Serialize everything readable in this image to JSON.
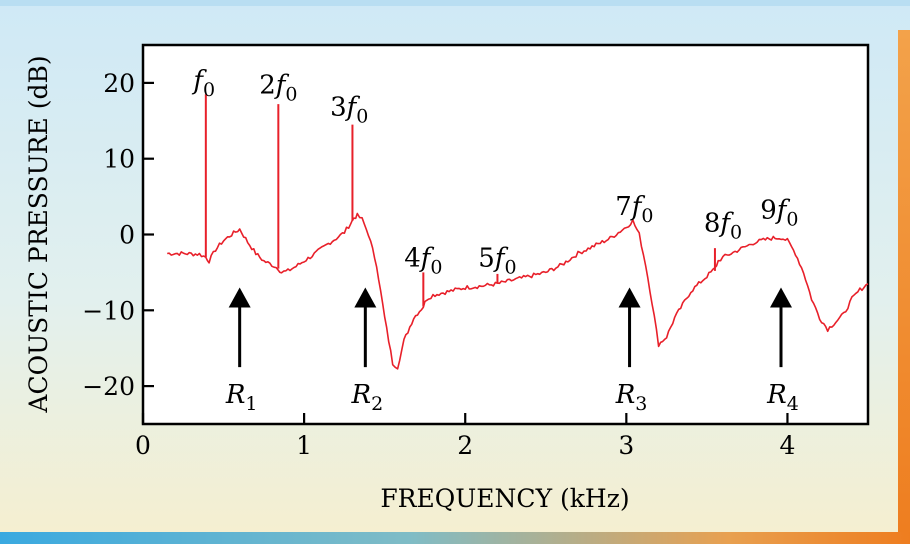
{
  "chart_data": {
    "type": "line",
    "xlabel": "FREQUENCY (kHz)",
    "ylabel": "ACOUSTIC PRESSURE (dB)",
    "xlim": [
      0,
      4.5
    ],
    "ylim": [
      -25,
      25
    ],
    "x_ticks": [
      0,
      1,
      2,
      3,
      4
    ],
    "y_ticks": [
      20,
      10,
      0,
      -10,
      -20
    ],
    "y_tick_labels": [
      "20",
      "10",
      "0",
      "−10",
      "−20"
    ],
    "grid": false,
    "line_color": "#e8202a",
    "series": [
      {
        "x": [
          0.15,
          0.25,
          0.35,
          0.39,
          0.41,
          0.45,
          0.5,
          0.55,
          0.6,
          0.65,
          0.7,
          0.75,
          0.8,
          0.84,
          0.86,
          0.9,
          0.95,
          1.0,
          1.05,
          1.1,
          1.15,
          1.2,
          1.25,
          1.29,
          1.31,
          1.33,
          1.36,
          1.4,
          1.45,
          1.5,
          1.55,
          1.58,
          1.62,
          1.68,
          1.74,
          1.76,
          1.8,
          1.9,
          2.0,
          2.1,
          2.2,
          2.3,
          2.4,
          2.5,
          2.6,
          2.7,
          2.8,
          2.9,
          3.0,
          3.04,
          3.08,
          3.12,
          3.16,
          3.2,
          3.25,
          3.3,
          3.4,
          3.5,
          3.55,
          3.57,
          3.6,
          3.7,
          3.8,
          3.9,
          3.96,
          4.0,
          4.05,
          4.1,
          4.15,
          4.2,
          4.25,
          4.3,
          4.35,
          4.4,
          4.45,
          4.5
        ],
        "y": [
          -2.5,
          -2.5,
          -2.6,
          -3,
          -3.5,
          -2,
          -0.8,
          0,
          0.7,
          -1,
          -2.5,
          -3.5,
          -4,
          -4.5,
          -5,
          -4.8,
          -4.2,
          -3.5,
          -2.8,
          -2,
          -1.2,
          -0.5,
          0.3,
          1.5,
          2.2,
          2.5,
          2,
          0,
          -4,
          -11,
          -17,
          -17.5,
          -14,
          -11,
          -9.5,
          -8.5,
          -8,
          -7.5,
          -7,
          -6.8,
          -6.5,
          -6,
          -5.5,
          -5,
          -4,
          -2.5,
          -1.5,
          -0.5,
          1,
          1.8,
          0,
          -4,
          -9,
          -14.5,
          -13.5,
          -11,
          -7.5,
          -5.5,
          -4.5,
          -3.5,
          -3,
          -2,
          -1,
          -0.5,
          -0.4,
          -0.8,
          -2.5,
          -5,
          -8.5,
          -11,
          -12.5,
          -11.5,
          -10.5,
          -8.5,
          -7.3,
          -6.5
        ],
        "spikes": [
          {
            "x": 0.39,
            "base": -3,
            "top": 18.5
          },
          {
            "x": 0.84,
            "base": -4.5,
            "top": 17.2
          },
          {
            "x": 1.3,
            "base": 1.8,
            "top": 14.5
          },
          {
            "x": 1.74,
            "base": -9.5,
            "top": -5
          },
          {
            "x": 2.2,
            "base": -6.5,
            "top": -5.2
          },
          {
            "x": 3.55,
            "base": -4.8,
            "top": -1.8
          }
        ]
      }
    ],
    "annotations": {
      "harmonics": [
        {
          "n": "",
          "x": 0.38,
          "y": 19.2
        },
        {
          "n": "2",
          "x": 0.84,
          "y": 18.6
        },
        {
          "n": "3",
          "x": 1.28,
          "y": 15.7
        },
        {
          "n": "4",
          "x": 1.74,
          "y": -4.2
        },
        {
          "n": "5",
          "x": 2.2,
          "y": -4.2
        },
        {
          "n": "7",
          "x": 3.05,
          "y": 2.6
        },
        {
          "n": "8",
          "x": 3.6,
          "y": 0.4
        },
        {
          "n": "9",
          "x": 3.95,
          "y": 2.1
        }
      ],
      "resonances": [
        {
          "n": "1",
          "x": 0.6,
          "arrow_top": -7,
          "arrow_bottom": -17.5
        },
        {
          "n": "2",
          "x": 1.38,
          "arrow_top": -7,
          "arrow_bottom": -17.5
        },
        {
          "n": "3",
          "x": 3.02,
          "arrow_top": -7,
          "arrow_bottom": -17.5
        },
        {
          "n": "4",
          "x": 3.96,
          "arrow_top": -7,
          "arrow_bottom": -17.5
        }
      ],
      "harmonic_letter": "f",
      "harmonic_subscript": "0",
      "resonance_letter": "R"
    }
  }
}
